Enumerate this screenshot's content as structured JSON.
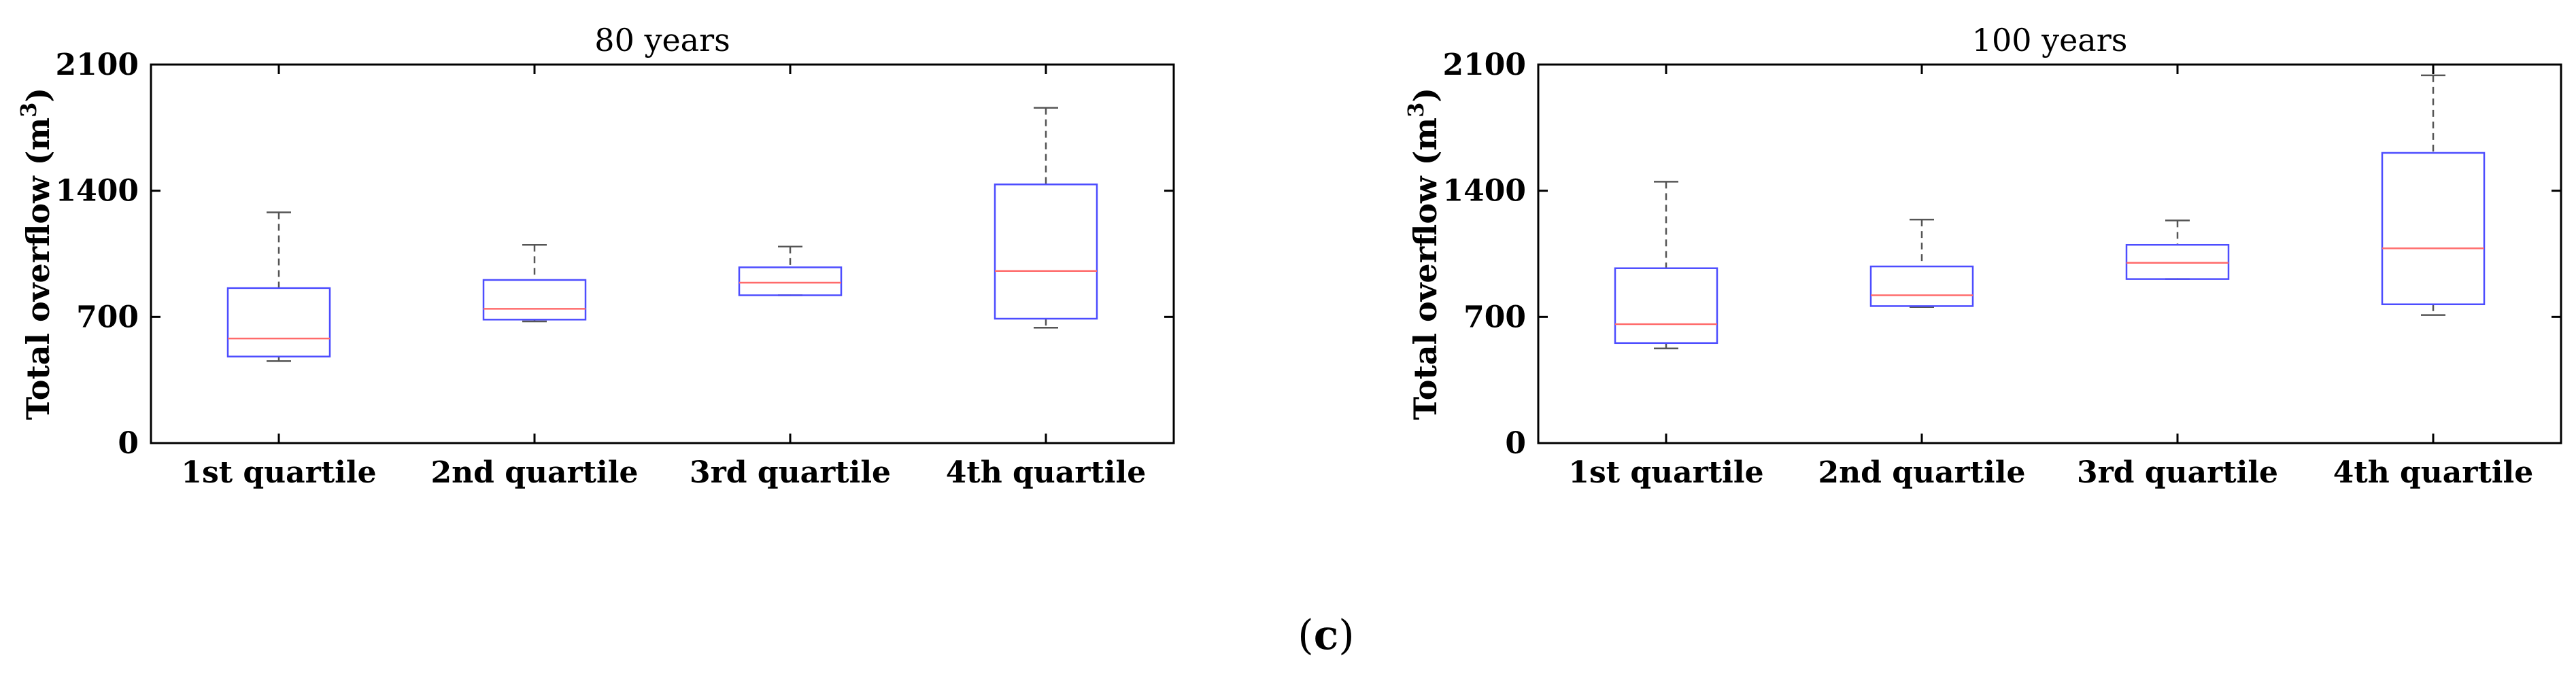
{
  "figure_label": {
    "open": "(",
    "letter": "c",
    "close": ")"
  },
  "colors": {
    "box": "#4d4dff",
    "median": "#ff6b6b",
    "whisker": "#555555",
    "axis": "#000000"
  },
  "chart_data": [
    {
      "type": "box",
      "title": "80 years",
      "ylabel": {
        "main": "Total overflow (m",
        "sup": "3",
        "end": ")"
      },
      "xlabel": "",
      "ylim": [
        0,
        2100
      ],
      "yticks": [
        0,
        700,
        1400,
        2100
      ],
      "grid": false,
      "categories": [
        "1st quartile",
        "2nd quartile",
        "3rd quartile",
        "4th quartile"
      ],
      "boxes": [
        {
          "min": 455,
          "q1": 480,
          "median": 580,
          "q3": 860,
          "max": 1280
        },
        {
          "min": 675,
          "q1": 685,
          "median": 745,
          "q3": 905,
          "max": 1100
        },
        {
          "min": 820,
          "q1": 820,
          "median": 890,
          "q3": 975,
          "max": 1090
        },
        {
          "min": 640,
          "q1": 690,
          "median": 955,
          "q3": 1435,
          "max": 1860
        }
      ]
    },
    {
      "type": "box",
      "title": "100 years",
      "ylabel": {
        "main": "Total overflow (m",
        "sup": "3",
        "end": ")"
      },
      "xlabel": "",
      "ylim": [
        0,
        2100
      ],
      "yticks": [
        0,
        700,
        1400,
        2100
      ],
      "grid": false,
      "categories": [
        "1st quartile",
        "2nd quartile",
        "3rd quartile",
        "4th quartile"
      ],
      "boxes": [
        {
          "min": 525,
          "q1": 555,
          "median": 660,
          "q3": 970,
          "max": 1450
        },
        {
          "min": 755,
          "q1": 760,
          "median": 820,
          "q3": 980,
          "max": 1240
        },
        {
          "min": 910,
          "q1": 910,
          "median": 1000,
          "q3": 1100,
          "max": 1235
        },
        {
          "min": 710,
          "q1": 770,
          "median": 1080,
          "q3": 1610,
          "max": 2040
        }
      ]
    }
  ]
}
